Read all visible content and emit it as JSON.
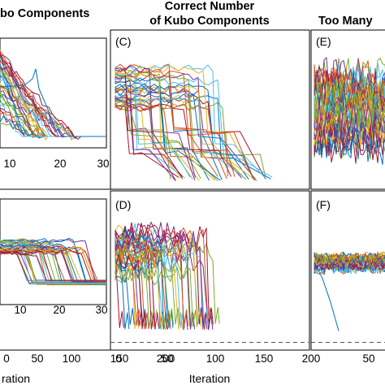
{
  "figure": {
    "titles": {
      "left": "bo Components",
      "middle_line1": "Correct Number",
      "middle_line2": "of Kubo Components",
      "right": "Too Many"
    }
  },
  "chart_data": [
    {
      "id": "B",
      "type": "line",
      "panel_label": "",
      "xticks": [
        "10",
        "20",
        "30"
      ],
      "xlim": [
        0,
        30
      ],
      "ylim": [
        0,
        1
      ],
      "grid": false,
      "legend": "none",
      "dashed_reference_y": 0.35,
      "highlight_series": {
        "x": [
          0,
          12,
          18,
          21,
          23,
          25
        ],
        "y": [
          0.6,
          0.58,
          0.55,
          0.6,
          0.45,
          0.32
        ]
      }
    },
    {
      "id": "BB",
      "type": "line",
      "panel_label": "",
      "xticks": [
        "10",
        "20",
        "30"
      ],
      "xlim": [
        0,
        30
      ],
      "ylim": [
        0,
        1
      ],
      "grid": false,
      "legend": "none"
    },
    {
      "id": "C",
      "type": "line",
      "panel_label": "(C)",
      "xlim": [
        0,
        200
      ],
      "ylim": [
        0,
        1
      ],
      "grid": false,
      "legend": "none",
      "runs": 40,
      "drop_range_iterations": [
        5,
        115
      ]
    },
    {
      "id": "D",
      "type": "line",
      "panel_label": "(D)",
      "xticks": [
        "0",
        "50",
        "100",
        "150",
        "200"
      ],
      "xlim": [
        0,
        200
      ],
      "ylim": [
        0,
        1
      ],
      "grid": false,
      "legend": "none",
      "dashed_reference_y": 0.12,
      "runs": 40
    },
    {
      "id": "E",
      "type": "line",
      "panel_label": "(E)",
      "xlim": [
        0,
        200
      ],
      "ylim": [
        0,
        1
      ],
      "grid": false,
      "legend": "none",
      "runs": 40
    },
    {
      "id": "F",
      "type": "line",
      "panel_label": "(F)",
      "xticks": [
        "0",
        "50"
      ],
      "xlim": [
        0,
        200
      ],
      "ylim": [
        0,
        1
      ],
      "grid": false,
      "legend": "none",
      "dashed_reference_y": 0.12,
      "runs": 40,
      "outlier_series": {
        "x": [
          0,
          10,
          20,
          30
        ],
        "y": [
          0.55,
          0.45,
          0.3,
          0.12
        ]
      }
    }
  ],
  "bottom_axis": {
    "left_ticks": [
      "0",
      "50",
      "100",
      "150",
      "200"
    ],
    "left_label": "ration",
    "middle_label": "Iteration"
  },
  "colors": [
    "#0072BD",
    "#D95319",
    "#EDB120",
    "#7E2F8E",
    "#77AC30",
    "#4DBEEE",
    "#A2142F"
  ]
}
